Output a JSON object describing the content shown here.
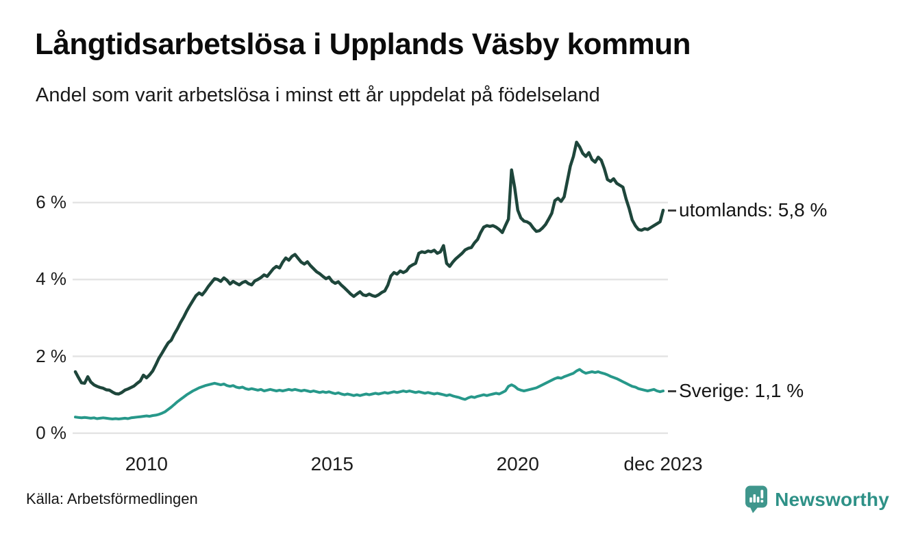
{
  "header": {
    "title": "Långtidsarbetslösa i Upplands Väsby kommun",
    "subtitle": "Andel som varit arbetslösa i minst ett år uppdelat på födelseland"
  },
  "chart_data": {
    "type": "line",
    "unit": "percent",
    "frequency": "monthly",
    "x_start": "2008-02",
    "x_end": "2023-12",
    "grid": "horizontal",
    "legend_position": "right-end-labels",
    "ylim": [
      0,
      7.9
    ],
    "x_ticks": [
      {
        "label": "2010",
        "month_index": 23
      },
      {
        "label": "2015",
        "month_index": 83
      },
      {
        "label": "2020",
        "month_index": 143
      },
      {
        "label": "dec 2023",
        "month_index": 190
      }
    ],
    "y_ticks": [
      {
        "label": "0 %",
        "value": 0
      },
      {
        "label": "2 %",
        "value": 2
      },
      {
        "label": "4 %",
        "value": 4
      },
      {
        "label": "6 %",
        "value": 6
      }
    ],
    "series": [
      {
        "name": "utomlands",
        "end_label": "utomlands: 5,8 %",
        "last_value_display": "5,8 %",
        "color": "#1e463b",
        "values": [
          1.6,
          1.45,
          1.31,
          1.3,
          1.47,
          1.33,
          1.26,
          1.22,
          1.19,
          1.17,
          1.13,
          1.12,
          1.07,
          1.03,
          1.02,
          1.06,
          1.12,
          1.15,
          1.19,
          1.23,
          1.3,
          1.36,
          1.51,
          1.44,
          1.52,
          1.62,
          1.78,
          1.95,
          2.08,
          2.22,
          2.35,
          2.42,
          2.58,
          2.72,
          2.88,
          3.02,
          3.18,
          3.32,
          3.45,
          3.58,
          3.65,
          3.6,
          3.7,
          3.82,
          3.92,
          4.02,
          4.0,
          3.95,
          4.04,
          3.98,
          3.88,
          3.95,
          3.9,
          3.86,
          3.92,
          3.95,
          3.89,
          3.86,
          3.96,
          4.0,
          4.05,
          4.12,
          4.08,
          4.18,
          4.28,
          4.34,
          4.3,
          4.45,
          4.56,
          4.5,
          4.6,
          4.65,
          4.55,
          4.45,
          4.4,
          4.46,
          4.36,
          4.28,
          4.2,
          4.15,
          4.08,
          4.02,
          4.06,
          3.95,
          3.9,
          3.94,
          3.85,
          3.78,
          3.7,
          3.62,
          3.56,
          3.62,
          3.68,
          3.6,
          3.58,
          3.62,
          3.58,
          3.56,
          3.6,
          3.66,
          3.7,
          3.85,
          4.09,
          4.18,
          4.14,
          4.22,
          4.18,
          4.22,
          4.33,
          4.38,
          4.42,
          4.68,
          4.72,
          4.7,
          4.74,
          4.72,
          4.76,
          4.68,
          4.72,
          4.88,
          4.42,
          4.34,
          4.45,
          4.54,
          4.61,
          4.68,
          4.77,
          4.81,
          4.83,
          4.95,
          5.04,
          5.22,
          5.36,
          5.4,
          5.38,
          5.4,
          5.36,
          5.3,
          5.22,
          5.4,
          5.57,
          6.85,
          6.4,
          5.8,
          5.6,
          5.52,
          5.5,
          5.45,
          5.34,
          5.25,
          5.27,
          5.34,
          5.43,
          5.57,
          5.72,
          6.05,
          6.11,
          6.03,
          6.15,
          6.55,
          6.95,
          7.2,
          7.57,
          7.45,
          7.28,
          7.2,
          7.3,
          7.12,
          7.05,
          7.18,
          7.1,
          6.88,
          6.6,
          6.55,
          6.62,
          6.5,
          6.45,
          6.4,
          6.1,
          5.85,
          5.55,
          5.4,
          5.3,
          5.28,
          5.32,
          5.3,
          5.35,
          5.4,
          5.45,
          5.5,
          5.8
        ]
      },
      {
        "name": "Sverige",
        "end_label": "Sverige: 1,1 %",
        "last_value_display": "1,1 %",
        "color": "#27988a",
        "values": [
          0.42,
          0.41,
          0.4,
          0.41,
          0.4,
          0.39,
          0.4,
          0.38,
          0.39,
          0.4,
          0.39,
          0.38,
          0.37,
          0.38,
          0.37,
          0.38,
          0.39,
          0.38,
          0.4,
          0.41,
          0.42,
          0.43,
          0.44,
          0.45,
          0.44,
          0.46,
          0.47,
          0.49,
          0.52,
          0.56,
          0.62,
          0.68,
          0.75,
          0.82,
          0.88,
          0.94,
          1.0,
          1.05,
          1.1,
          1.14,
          1.18,
          1.21,
          1.24,
          1.26,
          1.28,
          1.3,
          1.28,
          1.26,
          1.28,
          1.24,
          1.22,
          1.24,
          1.2,
          1.18,
          1.2,
          1.16,
          1.14,
          1.16,
          1.14,
          1.12,
          1.14,
          1.1,
          1.12,
          1.14,
          1.12,
          1.1,
          1.12,
          1.1,
          1.12,
          1.14,
          1.12,
          1.14,
          1.12,
          1.1,
          1.12,
          1.1,
          1.08,
          1.1,
          1.08,
          1.06,
          1.08,
          1.06,
          1.08,
          1.05,
          1.03,
          1.05,
          1.02,
          1.0,
          1.02,
          1.0,
          0.98,
          1.0,
          0.98,
          1.0,
          1.02,
          1.0,
          1.02,
          1.04,
          1.02,
          1.04,
          1.06,
          1.04,
          1.06,
          1.08,
          1.06,
          1.08,
          1.1,
          1.08,
          1.1,
          1.08,
          1.06,
          1.08,
          1.06,
          1.04,
          1.06,
          1.04,
          1.02,
          1.04,
          1.02,
          1.0,
          0.98,
          1.0,
          0.97,
          0.95,
          0.93,
          0.9,
          0.88,
          0.92,
          0.95,
          0.93,
          0.96,
          0.98,
          1.0,
          0.98,
          1.0,
          1.02,
          1.04,
          1.02,
          1.06,
          1.1,
          1.22,
          1.26,
          1.22,
          1.15,
          1.12,
          1.1,
          1.12,
          1.14,
          1.16,
          1.18,
          1.22,
          1.26,
          1.3,
          1.34,
          1.38,
          1.42,
          1.45,
          1.43,
          1.47,
          1.5,
          1.53,
          1.56,
          1.62,
          1.66,
          1.6,
          1.56,
          1.58,
          1.6,
          1.58,
          1.6,
          1.57,
          1.55,
          1.52,
          1.48,
          1.45,
          1.42,
          1.38,
          1.34,
          1.3,
          1.26,
          1.22,
          1.2,
          1.16,
          1.14,
          1.12,
          1.1,
          1.12,
          1.14,
          1.1,
          1.08,
          1.1
        ]
      }
    ]
  },
  "footer": {
    "source": "Källa: Arbetsförmedlingen",
    "brand": "Newsworthy"
  },
  "colors": {
    "series_utomlands": "#1e463b",
    "series_sverige": "#27988a",
    "gridline": "#e4e4e4",
    "text": "#1a1a1a",
    "brand_teal": "#2e9187",
    "brand_icon": "#3f968c"
  }
}
